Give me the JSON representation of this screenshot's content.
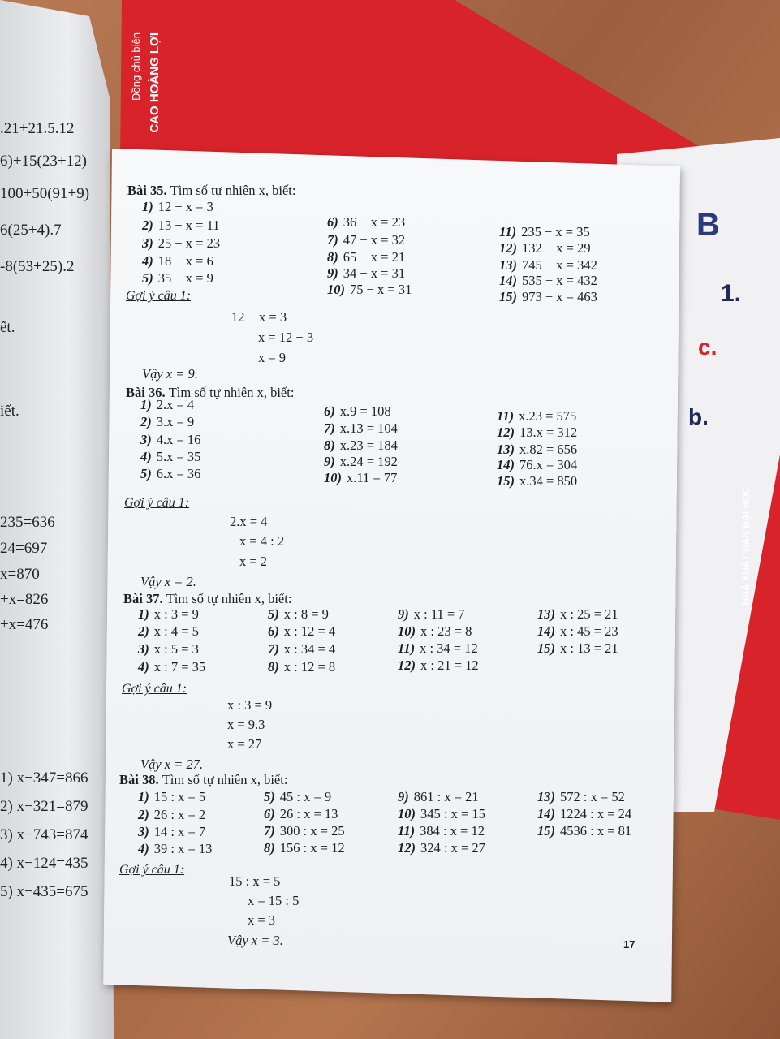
{
  "background": {
    "floor_color": "#a8694a",
    "cover_color": "#d9232b"
  },
  "cover_text": {
    "authors": "Đồng chủ biên",
    "author_name": "CAO HOÀNG LỢI",
    "publisher": "NHÀ XUẤT BẢN ĐẠI HỌC",
    "letters": [
      "B",
      "1.",
      "c.",
      "b."
    ]
  },
  "left_page": {
    "fragments": [
      ".21+21.5.12",
      "6)+15(23+12)",
      "100+50(91+9)",
      "6(25+4).7",
      "-8(53+25).2",
      "ết.",
      "iết.",
      "235=636",
      "24=697",
      "x=870",
      "+x=826",
      "+x=476",
      "1) x−347=866",
      "2) x−321=879",
      "3) x−743=874",
      "4) x−124=435",
      "5) x−435=675"
    ]
  },
  "exercises": [
    {
      "title": "Bài 35.",
      "instruction": "Tìm số tự nhiên x, biết:",
      "items": [
        [
          "1)",
          "12 − x = 3"
        ],
        [
          "2)",
          "13 − x = 11"
        ],
        [
          "3)",
          "25 − x = 23"
        ],
        [
          "4)",
          "18 − x = 6"
        ],
        [
          "5)",
          "35 − x = 9"
        ],
        [
          "6)",
          "36 − x = 23"
        ],
        [
          "7)",
          "47 − x = 32"
        ],
        [
          "8)",
          "65 − x = 21"
        ],
        [
          "9)",
          "34 − x = 31"
        ],
        [
          "10)",
          "75 − x = 31"
        ],
        [
          "11)",
          "235 − x = 35"
        ],
        [
          "12)",
          "132 − x = 29"
        ],
        [
          "13)",
          "745 − x = 342"
        ],
        [
          "14)",
          "535 − x = 432"
        ],
        [
          "15)",
          "973 − x = 463"
        ]
      ],
      "hint": "Gợi ý câu 1:",
      "steps": [
        "12 − x = 3",
        "x = 12 − 3",
        "x =  9"
      ],
      "conclusion": "Vậy x = 9."
    },
    {
      "title": "Bài 36.",
      "instruction": "Tìm số tự nhiên x, biết:",
      "items": [
        [
          "1)",
          "2.x = 4"
        ],
        [
          "2)",
          "3.x = 9"
        ],
        [
          "3)",
          "4.x = 16"
        ],
        [
          "4)",
          "5.x = 35"
        ],
        [
          "5)",
          "6.x = 36"
        ],
        [
          "6)",
          "x.9 = 108"
        ],
        [
          "7)",
          "x.13 = 104"
        ],
        [
          "8)",
          "x.23 = 184"
        ],
        [
          "9)",
          "x.24 = 192"
        ],
        [
          "10)",
          "x.11 = 77"
        ],
        [
          "11)",
          "x.23 = 575"
        ],
        [
          "12)",
          "13.x = 312"
        ],
        [
          "13)",
          "x.82 = 656"
        ],
        [
          "14)",
          "76.x = 304"
        ],
        [
          "15)",
          "x.34 = 850"
        ]
      ],
      "hint": "Gợi ý câu 1:",
      "steps": [
        "2.x = 4",
        "x = 4 : 2",
        "x =  2"
      ],
      "conclusion": "Vậy x = 2."
    },
    {
      "title": "Bài 37.",
      "instruction": "Tìm số tự nhiên x, biết:",
      "items": [
        [
          "1)",
          "x : 3 = 9"
        ],
        [
          "2)",
          "x : 4 = 5"
        ],
        [
          "3)",
          "x : 5 = 3"
        ],
        [
          "4)",
          "x : 7 = 35"
        ],
        [
          "5)",
          "x : 8 = 9"
        ],
        [
          "6)",
          "x : 12 = 4"
        ],
        [
          "7)",
          "x : 34 = 4"
        ],
        [
          "8)",
          "x : 12 = 8"
        ],
        [
          "9)",
          "x : 11 = 7"
        ],
        [
          "10)",
          "x : 23 = 8"
        ],
        [
          "11)",
          "x : 34 = 12"
        ],
        [
          "12)",
          "x : 21 = 12"
        ],
        [
          "13)",
          "x : 25 = 21"
        ],
        [
          "14)",
          "x : 45 = 23"
        ],
        [
          "15)",
          "x : 13 = 21"
        ]
      ],
      "hint": "Gợi ý câu 1:",
      "steps": [
        "x : 3 = 9",
        "x    = 9.3",
        "x    = 27"
      ],
      "conclusion": "Vậy x = 27."
    },
    {
      "title": "Bài 38.",
      "instruction": "Tìm số tự nhiên x, biết:",
      "items": [
        [
          "1)",
          "15 : x = 5"
        ],
        [
          "2)",
          "26 : x = 2"
        ],
        [
          "3)",
          "14 : x = 7"
        ],
        [
          "4)",
          "39 : x = 13"
        ],
        [
          "5)",
          "45 : x = 9"
        ],
        [
          "6)",
          "26 : x = 13"
        ],
        [
          "7)",
          "300 : x = 25"
        ],
        [
          "8)",
          "156 : x = 12"
        ],
        [
          "9)",
          "861 : x = 21"
        ],
        [
          "10)",
          "345 : x = 15"
        ],
        [
          "11)",
          "384 : x = 12"
        ],
        [
          "12)",
          "324 : x = 27"
        ],
        [
          "13)",
          "572 : x = 52"
        ],
        [
          "14)",
          "1224 : x = 24"
        ],
        [
          "15)",
          "4536 : x = 81"
        ]
      ],
      "hint": "Gợi ý câu 1:",
      "steps": [
        "15 : x = 5",
        "x = 15 : 5",
        "x =  3"
      ],
      "conclusion": "Vậy x = 3."
    }
  ],
  "page_number": "17"
}
